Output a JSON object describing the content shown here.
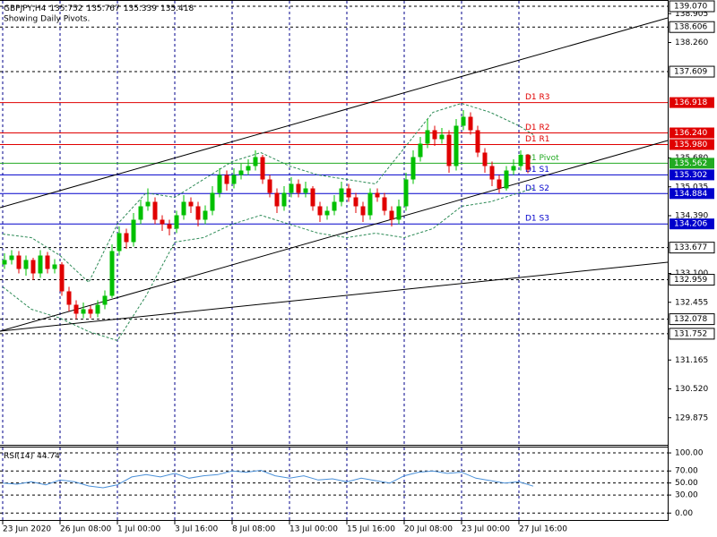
{
  "chart_data": {
    "type": "candlestick",
    "title": "GBPJPY,H4",
    "subtitle": "Showing Daily Pivots.",
    "up_color": "#00c000",
    "down_color": "#e00000",
    "grid": true,
    "xlim": [
      -0.75,
      185.5
    ],
    "xticks": [
      {
        "value": 0,
        "label": "23 Jun 2020"
      },
      {
        "value": 16,
        "label": "26 Jun 08:00"
      },
      {
        "value": 32,
        "label": "1 Jul 00:00"
      },
      {
        "value": 48,
        "label": "3 Jul 16:00"
      },
      {
        "value": 64,
        "label": "8 Jul 08:00"
      },
      {
        "value": 80,
        "label": "13 Jul 00:00"
      },
      {
        "value": 96,
        "label": "15 Jul 16:00"
      },
      {
        "value": 112,
        "label": "20 Jul 08:00"
      },
      {
        "value": 128,
        "label": "23 Jul 00:00"
      },
      {
        "value": 144,
        "label": "27 Jul 16:00"
      }
    ],
    "ylim": [
      129.27,
      139.21
    ],
    "yticks": [
      138.905,
      {
        "value": 138.26,
        "label": "138.260"
      },
      {
        "value": 135.68,
        "label": "135.680"
      },
      135.035,
      {
        "value": 134.39,
        "label": "134.390"
      },
      {
        "value": 133.1,
        "label": "133.100"
      },
      132.455,
      131.165,
      {
        "value": 130.52,
        "label": "130.520"
      },
      129.875
    ],
    "levels": [
      {
        "value": 139.07,
        "label": "139.070"
      },
      138.606,
      {
        "value": 137.609,
        "label": "137.609"
      },
      133.677,
      132.959,
      132.078,
      131.752
    ],
    "pivots": [
      {
        "name": "D1 R3",
        "value": 136.918,
        "color": "#e00000"
      },
      {
        "name": "D1 R2",
        "value": 136.24,
        "label": "136.240",
        "color": "#e00000"
      },
      {
        "name": "D1 R1",
        "value": 135.98,
        "label": "135.980",
        "color": "#e00000"
      },
      {
        "name": "D1 Pivot",
        "value": 135.562,
        "color": "#22aa22"
      },
      {
        "name": "D1 S1",
        "value": 135.302,
        "color": "#0000cc"
      },
      {
        "name": "D1 S2",
        "value": 134.884,
        "color": "#0000cc"
      },
      {
        "name": "D1 S3",
        "value": 134.206,
        "color": "#0000cc"
      }
    ],
    "candles": [
      [
        133.3,
        133.55,
        133.2,
        133.4
      ],
      [
        133.4,
        133.62,
        133.3,
        133.5
      ],
      [
        133.5,
        133.6,
        133.1,
        133.2
      ],
      [
        133.2,
        133.5,
        133.05,
        133.4
      ],
      [
        133.4,
        133.45,
        132.95,
        133.1
      ],
      [
        133.1,
        133.62,
        133.0,
        133.5
      ],
      [
        133.5,
        133.58,
        133.1,
        133.2
      ],
      [
        133.2,
        133.42,
        133.1,
        133.3
      ],
      [
        133.3,
        133.35,
        132.6,
        132.7
      ],
      [
        132.7,
        132.8,
        132.25,
        132.4
      ],
      [
        132.4,
        132.5,
        132.08,
        132.2
      ],
      [
        132.2,
        132.45,
        132.1,
        132.3
      ],
      [
        132.3,
        132.38,
        132.1,
        132.2
      ],
      [
        132.2,
        132.5,
        132.12,
        132.4
      ],
      [
        132.4,
        132.72,
        132.3,
        132.6
      ],
      [
        132.6,
        133.75,
        132.55,
        133.6
      ],
      [
        133.6,
        134.15,
        133.5,
        134.0
      ],
      [
        134.0,
        134.1,
        133.65,
        133.8
      ],
      [
        133.8,
        134.45,
        133.7,
        134.3
      ],
      [
        134.3,
        134.75,
        134.2,
        134.6
      ],
      [
        134.6,
        135.0,
        134.5,
        134.7
      ],
      [
        134.7,
        134.8,
        134.2,
        134.3
      ],
      [
        134.3,
        134.4,
        134.05,
        134.2
      ],
      [
        134.2,
        134.3,
        133.95,
        134.1
      ],
      [
        134.1,
        134.5,
        134.0,
        134.4
      ],
      [
        134.4,
        134.85,
        134.3,
        134.7
      ],
      [
        134.7,
        134.8,
        134.45,
        134.6
      ],
      [
        134.6,
        134.7,
        134.15,
        134.3
      ],
      [
        134.3,
        134.62,
        134.2,
        134.5
      ],
      [
        134.5,
        135.05,
        134.4,
        134.9
      ],
      [
        134.9,
        135.45,
        134.8,
        135.3
      ],
      [
        135.3,
        135.4,
        134.95,
        135.1
      ],
      [
        135.1,
        135.45,
        135.0,
        135.3
      ],
      [
        135.3,
        135.55,
        135.2,
        135.4
      ],
      [
        135.4,
        135.65,
        135.3,
        135.5
      ],
      [
        135.5,
        135.85,
        135.4,
        135.7
      ],
      [
        135.7,
        135.75,
        135.1,
        135.2
      ],
      [
        135.2,
        135.3,
        134.8,
        134.9
      ],
      [
        134.9,
        135.0,
        134.45,
        134.6
      ],
      [
        134.6,
        135.05,
        134.5,
        134.9
      ],
      [
        134.9,
        135.25,
        134.8,
        135.1
      ],
      [
        135.1,
        135.2,
        134.8,
        134.9
      ],
      [
        134.9,
        135.15,
        134.8,
        135.0
      ],
      [
        135.0,
        135.05,
        134.5,
        134.6
      ],
      [
        134.6,
        134.7,
        134.25,
        134.4
      ],
      [
        134.4,
        134.6,
        134.3,
        134.5
      ],
      [
        134.5,
        134.85,
        134.4,
        134.7
      ],
      [
        134.7,
        135.15,
        134.6,
        135.0
      ],
      [
        135.0,
        135.1,
        134.7,
        134.8
      ],
      [
        134.8,
        134.9,
        134.45,
        134.6
      ],
      [
        134.6,
        134.7,
        134.25,
        134.4
      ],
      [
        134.4,
        135.0,
        134.3,
        134.9
      ],
      [
        134.9,
        135.0,
        134.7,
        134.8
      ],
      [
        134.8,
        134.9,
        134.4,
        134.5
      ],
      [
        134.5,
        134.6,
        134.15,
        134.3
      ],
      [
        134.3,
        134.75,
        134.2,
        134.6
      ],
      [
        134.6,
        135.35,
        134.5,
        135.2
      ],
      [
        135.2,
        135.85,
        135.1,
        135.7
      ],
      [
        135.7,
        136.15,
        135.6,
        136.0
      ],
      [
        136.0,
        136.55,
        135.9,
        136.3
      ],
      [
        136.3,
        136.4,
        135.95,
        136.1
      ],
      [
        136.1,
        136.35,
        136.0,
        136.2
      ],
      [
        136.2,
        136.3,
        135.35,
        135.5
      ],
      [
        135.5,
        136.55,
        135.4,
        136.4
      ],
      [
        136.4,
        136.75,
        136.3,
        136.6
      ],
      [
        136.6,
        136.7,
        136.2,
        136.3
      ],
      [
        136.3,
        136.4,
        135.7,
        135.8
      ],
      [
        135.8,
        135.9,
        135.35,
        135.5
      ],
      [
        135.5,
        135.6,
        135.05,
        135.2
      ],
      [
        135.2,
        135.3,
        134.9,
        135.0
      ],
      [
        135.0,
        135.5,
        134.95,
        135.4
      ],
      [
        135.4,
        135.65,
        135.3,
        135.5
      ],
      [
        135.5,
        135.85,
        135.4,
        135.752
      ],
      [
        135.752,
        135.767,
        135.339,
        135.418
      ]
    ],
    "envelope": {
      "color": "#2e8b57",
      "x": [
        0,
        8,
        16,
        24,
        32,
        40,
        48,
        56,
        64,
        72,
        80,
        88,
        96,
        104,
        112,
        120,
        128,
        136,
        144,
        148
      ],
      "upper": [
        133.98,
        133.9,
        133.5,
        132.9,
        134.2,
        134.9,
        134.8,
        135.2,
        135.6,
        135.8,
        135.5,
        135.3,
        135.2,
        135.1,
        135.9,
        136.7,
        136.9,
        136.7,
        136.4,
        136.2
      ],
      "lower": [
        132.8,
        132.3,
        132.1,
        131.8,
        131.6,
        132.6,
        133.8,
        133.9,
        134.2,
        134.4,
        134.2,
        134.0,
        133.9,
        134.0,
        133.9,
        134.1,
        134.6,
        134.7,
        134.9,
        135.0
      ]
    },
    "trendlines": [
      {
        "x": [
          -0.75,
          185.5
        ],
        "values": [
          134.57,
          138.81
        ]
      },
      {
        "x": [
          -0.75,
          185.5
        ],
        "values": [
          131.81,
          136.07
        ]
      },
      {
        "x": [
          -0.75,
          185.5
        ],
        "values": [
          131.81,
          133.35
        ]
      }
    ],
    "rsi": {
      "name": "RSI(14)",
      "color": "#4a90d9",
      "ylim": [
        -10,
        109
      ],
      "yticks": [
        {
          "value": 100,
          "label": "100.00"
        },
        {
          "value": 70,
          "label": "70.00"
        },
        {
          "value": 50,
          "label": "50.00"
        },
        {
          "value": 30,
          "label": "30.00"
        },
        {
          "value": 0,
          "label": "0.00"
        }
      ],
      "x": [
        0,
        4,
        8,
        12,
        16,
        20,
        24,
        28,
        32,
        36,
        40,
        44,
        48,
        52,
        56,
        60,
        64,
        68,
        72,
        76,
        80,
        84,
        88,
        92,
        96,
        100,
        104,
        108,
        112,
        116,
        120,
        124,
        128,
        132,
        136,
        140,
        144,
        148
      ],
      "values": [
        50,
        48,
        52,
        47,
        55,
        52,
        45,
        42,
        47,
        60,
        64,
        60,
        66,
        58,
        62,
        64,
        70,
        68,
        71,
        62,
        58,
        62,
        55,
        57,
        52,
        58,
        54,
        50,
        62,
        68,
        70,
        66,
        68,
        58,
        54,
        50,
        52,
        44.74
      ]
    }
  }
}
